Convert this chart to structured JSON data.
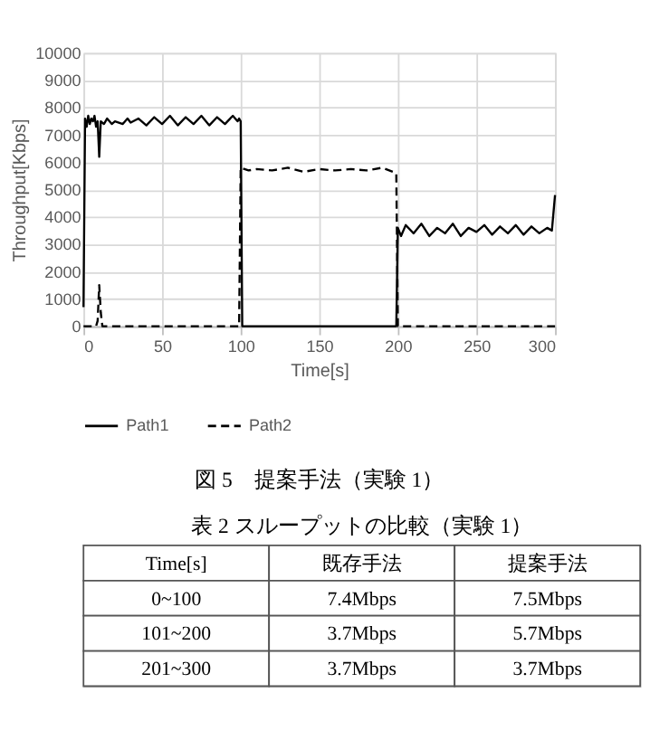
{
  "chart_data": [
    {
      "type": "line",
      "xlabel": "Time[s]",
      "ylabel": "Throughput[Kbps]",
      "annotations": [
        "図 5　提案手法（実験 1）"
      ],
      "xlim": [
        0,
        300
      ],
      "xticks": [
        0,
        50,
        100,
        150,
        200,
        250,
        300
      ],
      "ylim": [
        0,
        10000
      ],
      "yticks": [
        0,
        1000,
        2000,
        3000,
        4000,
        5000,
        6000,
        7000,
        8000,
        9000,
        10000
      ],
      "grid": true,
      "legend": "bottom",
      "marker": "none",
      "series": [
        {
          "name": "Path1",
          "color": "#000000",
          "line_style": "solid",
          "x": [
            0,
            1,
            2,
            3,
            4,
            5,
            6,
            7,
            8,
            9,
            10,
            11,
            13,
            15,
            18,
            20,
            25,
            28,
            30,
            35,
            40,
            45,
            50,
            55,
            60,
            65,
            70,
            75,
            80,
            85,
            90,
            95,
            98,
            99,
            100,
            101,
            150,
            199,
            200,
            202,
            205,
            210,
            215,
            220,
            225,
            230,
            235,
            240,
            245,
            250,
            255,
            260,
            265,
            270,
            275,
            280,
            285,
            290,
            295,
            298,
            300
          ],
          "values": [
            700,
            7600,
            7300,
            7700,
            7400,
            7600,
            7500,
            7700,
            7300,
            7500,
            6200,
            7500,
            7400,
            7600,
            7400,
            7500,
            7400,
            7600,
            7450,
            7600,
            7350,
            7650,
            7400,
            7700,
            7350,
            7650,
            7400,
            7700,
            7350,
            7650,
            7400,
            7700,
            7500,
            7600,
            7500,
            0,
            0,
            0,
            3600,
            3300,
            3700,
            3400,
            3750,
            3300,
            3600,
            3400,
            3750,
            3300,
            3600,
            3450,
            3700,
            3350,
            3650,
            3400,
            3700,
            3350,
            3650,
            3400,
            3600,
            3500,
            4800
          ]
        },
        {
          "name": "Path2",
          "color": "#000000",
          "line_style": "dashed",
          "x": [
            0,
            8,
            9,
            10,
            11,
            12,
            99,
            100,
            105,
            110,
            120,
            130,
            140,
            150,
            160,
            170,
            180,
            190,
            199,
            200,
            300
          ],
          "values": [
            0,
            0,
            200,
            1500,
            500,
            0,
            0,
            5800,
            5700,
            5750,
            5700,
            5800,
            5650,
            5750,
            5700,
            5750,
            5700,
            5800,
            5600,
            0,
            0
          ]
        }
      ]
    },
    {
      "type": "other",
      "title": "表 2 スループットの比較（実験 1）",
      "annotations": [
        "Time[s]",
        "既存手法",
        "提案手法",
        "0~100",
        "7.4Mbps",
        "7.5Mbps",
        "101~200",
        "3.7Mbps",
        "5.7Mbps",
        "201~300",
        "3.7Mbps",
        "3.7Mbps"
      ]
    }
  ]
}
